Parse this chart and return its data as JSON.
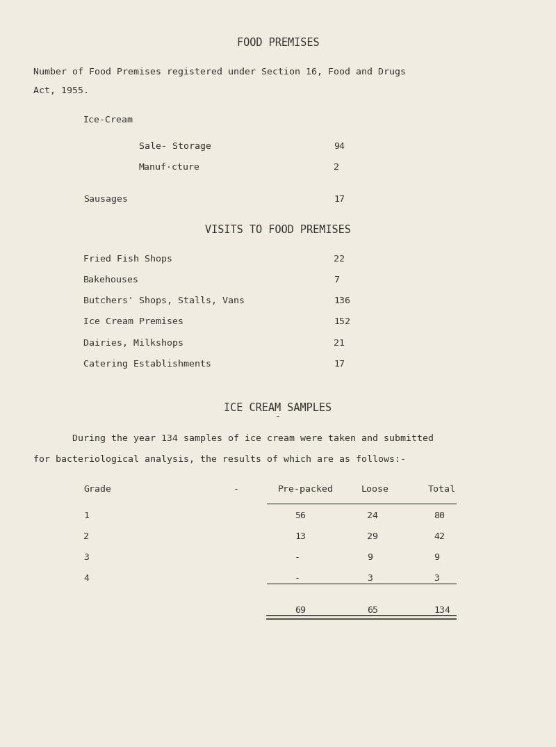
{
  "bg_color": "#f0ede0",
  "text_color": "#333333",
  "title": "FOOD PREMISES",
  "subtitle_line1": "Number of Food Premises registered under Section 16, Food and Drugs",
  "subtitle_line2": "Act, 1955.",
  "ice_cream_label": "Ice-Cream",
  "ice_cream_items": [
    {
      "label": "Sale- Storage",
      "value": "94"
    },
    {
      "label": "Manuf·cture",
      "value": "2"
    }
  ],
  "sausages_label": "Sausages",
  "sausages_value": "17",
  "visits_title": "VISITS TO FOOD PREMISES",
  "visits_items": [
    {
      "label": "Fried Fish Shops",
      "value": "22"
    },
    {
      "label": "Bakehouses",
      "value": "7"
    },
    {
      "label": "Butchers' Shops, Stalls, Vans",
      "value": "136"
    },
    {
      "label": "Ice Cream Premises",
      "value": "152"
    },
    {
      "label": "Dairies, Milkshops",
      "value": "21"
    },
    {
      "label": "Catering Establishments",
      "value": "17"
    }
  ],
  "ice_cream_samples_title": "ICE CREAM SAMPLES",
  "ice_cream_samples_intro1": "During the year 134 samples of ice cream were taken and submitted",
  "ice_cream_samples_intro2": "for bacteriological analysis, the results of which are as follows:-",
  "table_headers": [
    "Grade",
    "",
    "Pre-packed",
    "Loose",
    "Total"
  ],
  "table_rows": [
    [
      "1",
      "",
      "56",
      "24",
      "80"
    ],
    [
      "2",
      "",
      "13",
      "29",
      "42"
    ],
    [
      "3",
      "",
      "-",
      "9",
      "9"
    ],
    [
      "4",
      "",
      "-",
      "3",
      "3"
    ]
  ],
  "table_totals": [
    "",
    "",
    "69",
    "65",
    "134"
  ],
  "font_family": "monospace",
  "font_size_title": 11,
  "font_size_body": 9.5
}
